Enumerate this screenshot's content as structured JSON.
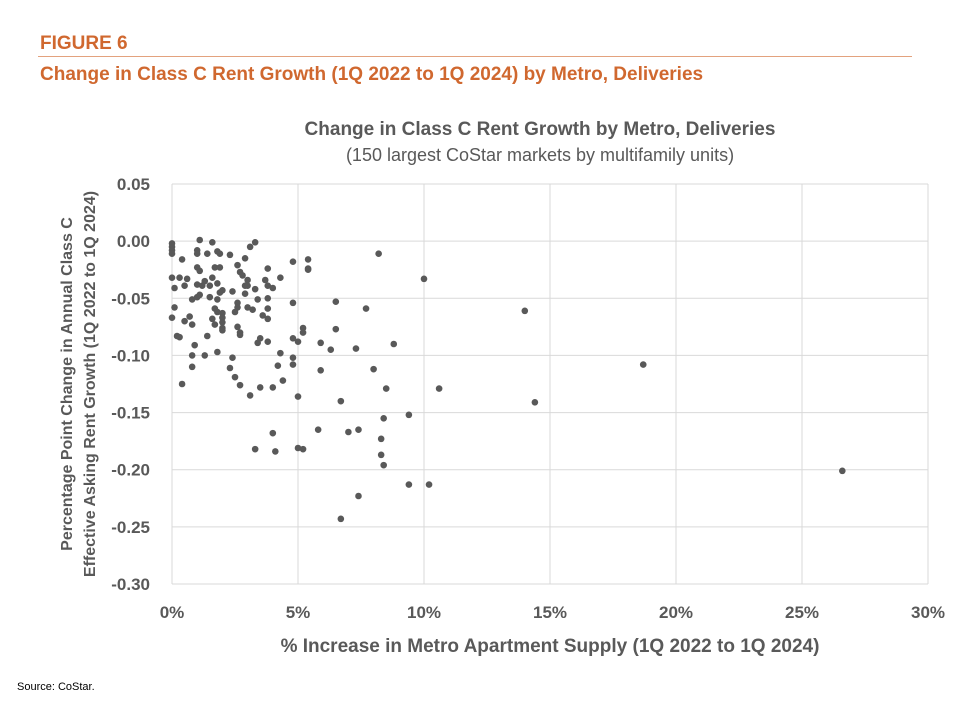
{
  "header": {
    "figure_label": "FIGURE 6",
    "figure_title": "Change in Class C Rent Growth (1Q 2022 to 1Q 2024) by Metro, Deliveries"
  },
  "source": "Source: CoStar.",
  "colors": {
    "accent": "#D0682F",
    "points": "#595959",
    "grid": "#D9D9D9"
  },
  "chart_data": {
    "type": "scatter",
    "title": "Change in Class C Rent Growth by Metro, Deliveries",
    "subtitle": "(150 largest CoStar markets by multifamily units)",
    "xlabel": "% Increase in Metro Apartment Supply (1Q 2022 to 1Q 2024)",
    "ylabel_line1": "Percentage Point Change in Annual Class C",
    "ylabel_line2": "Effective Asking Rent Growth (1Q 2022 to 1Q 2024)",
    "xlim": [
      0,
      30
    ],
    "ylim": [
      -0.3,
      0.05
    ],
    "x_ticks": [
      0,
      5,
      10,
      15,
      20,
      25,
      30
    ],
    "x_tick_labels": [
      "0%",
      "5%",
      "10%",
      "15%",
      "20%",
      "25%",
      "30%"
    ],
    "y_ticks": [
      0.05,
      0.0,
      -0.05,
      -0.1,
      -0.15,
      -0.2,
      -0.25,
      -0.3
    ],
    "y_tick_labels": [
      "0.05",
      "0.00",
      "-0.05",
      "-0.10",
      "-0.15",
      "-0.20",
      "-0.25",
      "-0.30"
    ],
    "grid": true,
    "legend": "none",
    "points": [
      [
        0.0,
        -0.002
      ],
      [
        0.0,
        -0.005
      ],
      [
        0.0,
        -0.008
      ],
      [
        0.0,
        -0.011
      ],
      [
        0.4,
        -0.016
      ],
      [
        1.1,
        0.001
      ],
      [
        1.6,
        -0.001
      ],
      [
        1.0,
        -0.008
      ],
      [
        1.0,
        -0.011
      ],
      [
        1.4,
        -0.011
      ],
      [
        1.8,
        -0.009
      ],
      [
        1.9,
        -0.011
      ],
      [
        2.3,
        -0.012
      ],
      [
        3.1,
        -0.005
      ],
      [
        3.3,
        -0.001
      ],
      [
        2.9,
        -0.015
      ],
      [
        2.6,
        -0.021
      ],
      [
        1.9,
        -0.023
      ],
      [
        1.7,
        -0.023
      ],
      [
        1.0,
        -0.023
      ],
      [
        1.1,
        -0.026
      ],
      [
        2.7,
        -0.027
      ],
      [
        2.8,
        -0.03
      ],
      [
        3.0,
        -0.034
      ],
      [
        3.8,
        -0.024
      ],
      [
        4.8,
        -0.018
      ],
      [
        5.4,
        -0.016
      ],
      [
        4.3,
        -0.032
      ],
      [
        3.7,
        -0.034
      ],
      [
        3.8,
        -0.039
      ],
      [
        4.0,
        -0.041
      ],
      [
        0.0,
        -0.032
      ],
      [
        0.3,
        -0.032
      ],
      [
        0.1,
        -0.041
      ],
      [
        0.6,
        -0.033
      ],
      [
        0.5,
        -0.039
      ],
      [
        1.0,
        -0.038
      ],
      [
        1.2,
        -0.039
      ],
      [
        1.3,
        -0.035
      ],
      [
        1.6,
        -0.032
      ],
      [
        1.5,
        -0.039
      ],
      [
        1.8,
        -0.037
      ],
      [
        2.0,
        -0.043
      ],
      [
        1.9,
        -0.045
      ],
      [
        2.4,
        -0.044
      ],
      [
        2.9,
        -0.039
      ],
      [
        3.0,
        -0.039
      ],
      [
        3.3,
        -0.042
      ],
      [
        2.9,
        -0.046
      ],
      [
        3.4,
        -0.051
      ],
      [
        3.8,
        -0.05
      ],
      [
        4.8,
        -0.054
      ],
      [
        0.8,
        -0.051
      ],
      [
        1.0,
        -0.049
      ],
      [
        1.1,
        -0.047
      ],
      [
        1.5,
        -0.049
      ],
      [
        1.8,
        -0.051
      ],
      [
        0.1,
        -0.058
      ],
      [
        0.0,
        -0.067
      ],
      [
        0.5,
        -0.07
      ],
      [
        0.7,
        -0.066
      ],
      [
        0.8,
        -0.073
      ],
      [
        1.7,
        -0.059
      ],
      [
        1.8,
        -0.062
      ],
      [
        2.0,
        -0.063
      ],
      [
        2.0,
        -0.067
      ],
      [
        1.6,
        -0.068
      ],
      [
        1.7,
        -0.073
      ],
      [
        2.6,
        -0.054
      ],
      [
        2.6,
        -0.058
      ],
      [
        2.5,
        -0.062
      ],
      [
        3.0,
        -0.058
      ],
      [
        3.2,
        -0.06
      ],
      [
        3.8,
        -0.059
      ],
      [
        3.6,
        -0.065
      ],
      [
        3.8,
        -0.068
      ],
      [
        2.6,
        -0.075
      ],
      [
        5.2,
        -0.076
      ],
      [
        2.0,
        -0.076
      ],
      [
        0.2,
        -0.083
      ],
      [
        0.3,
        -0.084
      ],
      [
        0.9,
        -0.091
      ],
      [
        0.8,
        -0.1
      ],
      [
        1.4,
        -0.083
      ],
      [
        1.3,
        -0.1
      ],
      [
        2.0,
        -0.071
      ],
      [
        2.0,
        -0.078
      ],
      [
        2.7,
        -0.08
      ],
      [
        2.7,
        -0.082
      ],
      [
        1.8,
        -0.097
      ],
      [
        2.4,
        -0.102
      ],
      [
        2.3,
        -0.111
      ],
      [
        2.5,
        -0.119
      ],
      [
        2.7,
        -0.126
      ],
      [
        0.8,
        -0.11
      ],
      [
        0.4,
        -0.125
      ],
      [
        3.1,
        -0.135
      ],
      [
        3.5,
        -0.128
      ],
      [
        4.0,
        -0.128
      ],
      [
        4.4,
        -0.122
      ],
      [
        4.2,
        -0.109
      ],
      [
        4.3,
        -0.098
      ],
      [
        3.4,
        -0.089
      ],
      [
        3.5,
        -0.085
      ],
      [
        3.8,
        -0.088
      ],
      [
        4.8,
        -0.085
      ],
      [
        5.0,
        -0.088
      ],
      [
        4.8,
        -0.102
      ],
      [
        4.8,
        -0.108
      ],
      [
        5.2,
        -0.08
      ],
      [
        5.0,
        -0.136
      ],
      [
        4.0,
        -0.168
      ],
      [
        3.3,
        -0.182
      ],
      [
        4.1,
        -0.184
      ],
      [
        5.0,
        -0.181
      ],
      [
        5.2,
        -0.182
      ],
      [
        5.4,
        -0.024
      ],
      [
        5.4,
        -0.025
      ],
      [
        8.2,
        -0.011
      ],
      [
        10.0,
        -0.033
      ],
      [
        6.5,
        -0.053
      ],
      [
        7.7,
        -0.059
      ],
      [
        6.5,
        -0.077
      ],
      [
        5.9,
        -0.089
      ],
      [
        6.3,
        -0.095
      ],
      [
        7.3,
        -0.094
      ],
      [
        8.8,
        -0.09
      ],
      [
        5.9,
        -0.113
      ],
      [
        8.0,
        -0.112
      ],
      [
        8.5,
        -0.129
      ],
      [
        6.7,
        -0.14
      ],
      [
        10.6,
        -0.129
      ],
      [
        8.4,
        -0.155
      ],
      [
        9.4,
        -0.152
      ],
      [
        5.8,
        -0.165
      ],
      [
        7.0,
        -0.167
      ],
      [
        7.4,
        -0.165
      ],
      [
        8.3,
        -0.173
      ],
      [
        8.3,
        -0.187
      ],
      [
        8.4,
        -0.196
      ],
      [
        9.4,
        -0.213
      ],
      [
        10.2,
        -0.213
      ],
      [
        7.4,
        -0.223
      ],
      [
        6.7,
        -0.243
      ],
      [
        14.0,
        -0.061
      ],
      [
        14.4,
        -0.141
      ],
      [
        18.7,
        -0.108
      ],
      [
        26.6,
        -0.201
      ]
    ]
  }
}
